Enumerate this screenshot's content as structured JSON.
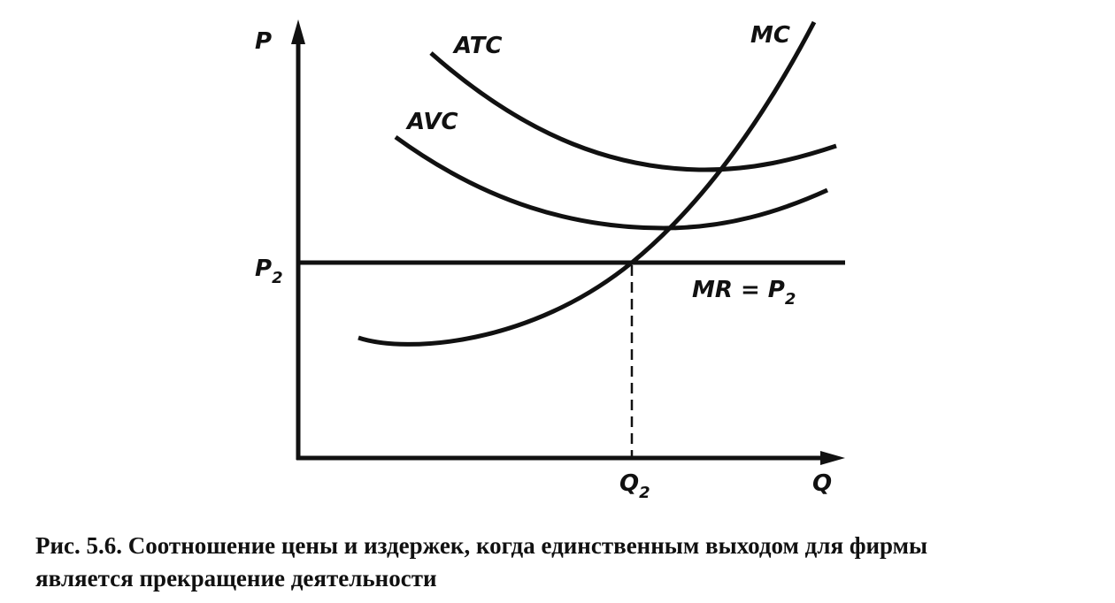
{
  "diagram": {
    "axis_labels": {
      "y": "P",
      "x": "Q"
    },
    "curves": {
      "atc": "ATC",
      "avc": "AVC",
      "mc": "MC"
    },
    "p2": {
      "main": "P",
      "sub": "2"
    },
    "q2": {
      "main": "Q",
      "sub": "2"
    },
    "mr": {
      "main": "MR = P",
      "sub": "2"
    }
  },
  "caption": {
    "lines": [
      "Рис. 5.6. Соотношение цены и издержек, когда единственным выходом для фирмы",
      "является прекращение деятельности"
    ]
  }
}
